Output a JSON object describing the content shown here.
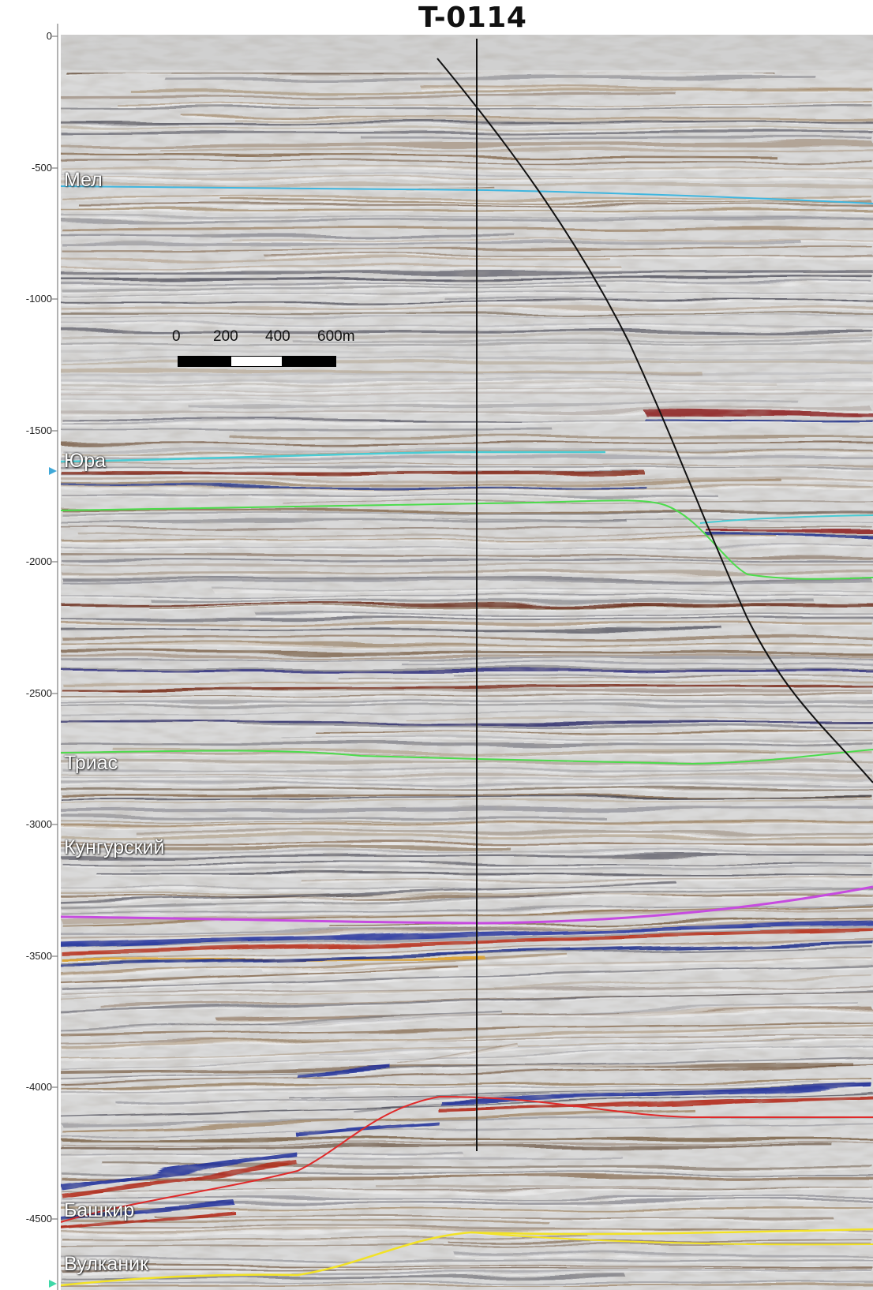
{
  "title": "T-0114",
  "depth_axis": {
    "ticks": [
      "0",
      "-500",
      "-1000",
      "-1500",
      "-2000",
      "-2500",
      "-3000",
      "-3500",
      "-4000",
      "-4500"
    ]
  },
  "horizons": [
    {
      "name": "Мел",
      "color": "#3fb6df"
    },
    {
      "name": "Юра",
      "color": "#49cbd4"
    },
    {
      "name": "Триас",
      "color": "#4cdc4c"
    },
    {
      "name": "Кунгурский",
      "color": "#c64be0"
    },
    {
      "name": "Башкир",
      "color": "#e02a2a"
    },
    {
      "name": "Вулканик",
      "color": "#f2e226"
    }
  ],
  "scale_bar": {
    "labels": [
      "0",
      "200",
      "400",
      "600m"
    ]
  }
}
